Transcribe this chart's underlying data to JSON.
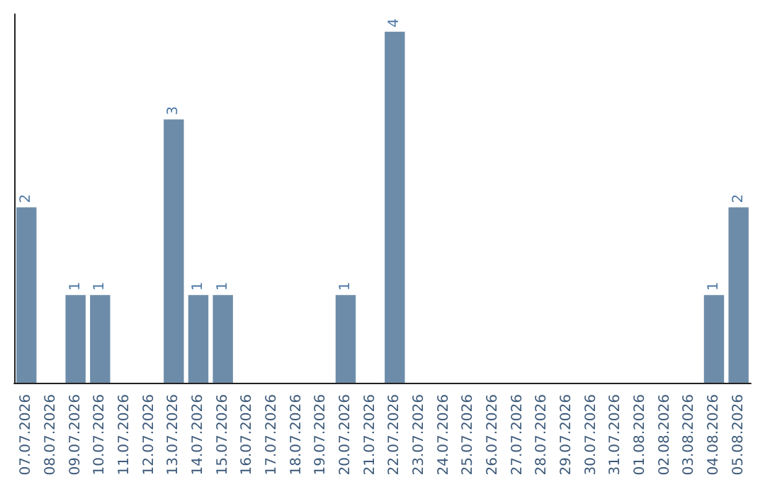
{
  "chart_data": {
    "type": "bar",
    "categories": [
      "07.07.2026",
      "08.07.2026",
      "09.07.2026",
      "10.07.2026",
      "11.07.2026",
      "12.07.2026",
      "13.07.2026",
      "14.07.2026",
      "15.07.2026",
      "16.07.2026",
      "17.07.2026",
      "18.07.2026",
      "19.07.2026",
      "20.07.2026",
      "21.07.2026",
      "22.07.2026",
      "23.07.2026",
      "24.07.2026",
      "25.07.2026",
      "26.07.2026",
      "27.07.2026",
      "28.07.2026",
      "29.07.2026",
      "30.07.2026",
      "31.07.2026",
      "01.08.2026",
      "02.08.2026",
      "03.08.2026",
      "04.08.2026",
      "05.08.2026"
    ],
    "values": [
      2,
      0,
      1,
      1,
      0,
      0,
      3,
      1,
      1,
      0,
      0,
      0,
      0,
      1,
      0,
      4,
      0,
      0,
      0,
      0,
      0,
      0,
      0,
      0,
      0,
      0,
      0,
      0,
      1,
      2
    ],
    "value_labels": [
      "2",
      null,
      "1",
      "1",
      null,
      null,
      "3",
      "1",
      "1",
      null,
      null,
      null,
      null,
      "1",
      null,
      "4",
      null,
      null,
      null,
      null,
      null,
      null,
      null,
      null,
      null,
      null,
      null,
      null,
      "1",
      "2"
    ],
    "color": "#6d8ca9",
    "ylim": [
      0,
      4.2
    ]
  }
}
